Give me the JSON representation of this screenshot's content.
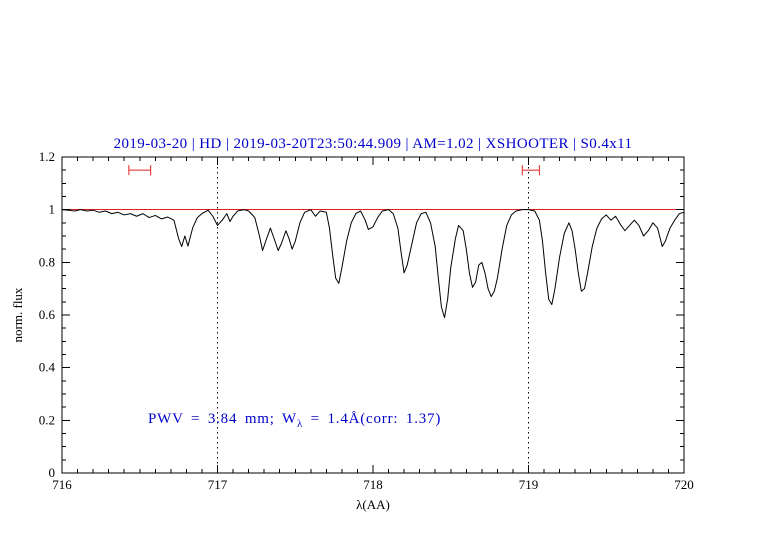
{
  "chart_data": {
    "type": "line",
    "title": "2019-03-20 | HD | 2019-03-20T23:50:44.909 | AM=1.02 | XSHOOTER | S0.4x11",
    "title_color": "#0000cc",
    "xlabel": "λ(AA)",
    "ylabel": "norm. flux",
    "xlim": [
      716,
      720
    ],
    "ylim": [
      0,
      1.2
    ],
    "x_ticks": [
      716,
      717,
      718,
      719,
      720
    ],
    "x_tick_labels": [
      "716",
      "717",
      "718",
      "719",
      "720"
    ],
    "x_minor_step": 0.1,
    "y_ticks": [
      0,
      0.2,
      0.4,
      0.6,
      0.8,
      1,
      1.2
    ],
    "y_tick_labels": [
      "0",
      "0.2",
      "0.4",
      "0.6",
      "0.8",
      "1",
      "1.2"
    ],
    "y_minor_step": 0.05,
    "vertical_dotted_lines_x": [
      717,
      719
    ],
    "reference_line": {
      "y": 1,
      "color": "#e02020"
    },
    "range_markers": [
      {
        "x1": 716.43,
        "x2": 716.57,
        "y": 1.15,
        "color": "#e02020"
      },
      {
        "x1": 718.96,
        "x2": 719.07,
        "y": 1.15,
        "color": "#e02020"
      }
    ],
    "annotation": {
      "prefix": "PWV = 3.84 mm; W",
      "sub": "λ",
      "suffix": " = 1.4Å(corr: 1.37)",
      "color": "#0000cc"
    },
    "series": [
      {
        "name": "spectrum",
        "color": "#000000",
        "points": [
          [
            716.0,
            1.0
          ],
          [
            716.04,
            0.998
          ],
          [
            716.08,
            0.995
          ],
          [
            716.12,
            1.0
          ],
          [
            716.16,
            0.995
          ],
          [
            716.2,
            0.998
          ],
          [
            716.24,
            0.99
          ],
          [
            716.28,
            0.995
          ],
          [
            716.32,
            0.985
          ],
          [
            716.36,
            0.99
          ],
          [
            716.4,
            0.98
          ],
          [
            716.44,
            0.985
          ],
          [
            716.48,
            0.975
          ],
          [
            716.52,
            0.985
          ],
          [
            716.56,
            0.97
          ],
          [
            716.6,
            0.978
          ],
          [
            716.64,
            0.965
          ],
          [
            716.68,
            0.972
          ],
          [
            716.72,
            0.96
          ],
          [
            716.75,
            0.89
          ],
          [
            716.77,
            0.86
          ],
          [
            716.79,
            0.9
          ],
          [
            716.81,
            0.862
          ],
          [
            716.84,
            0.93
          ],
          [
            716.87,
            0.97
          ],
          [
            716.9,
            0.985
          ],
          [
            716.94,
            0.998
          ],
          [
            716.97,
            0.975
          ],
          [
            717.0,
            0.94
          ],
          [
            717.03,
            0.96
          ],
          [
            717.06,
            0.985
          ],
          [
            717.08,
            0.955
          ],
          [
            717.1,
            0.975
          ],
          [
            717.13,
            0.995
          ],
          [
            717.17,
            1.0
          ],
          [
            717.2,
            0.995
          ],
          [
            717.24,
            0.97
          ],
          [
            717.27,
            0.9
          ],
          [
            717.29,
            0.845
          ],
          [
            717.31,
            0.88
          ],
          [
            717.34,
            0.93
          ],
          [
            717.37,
            0.88
          ],
          [
            717.39,
            0.845
          ],
          [
            717.41,
            0.87
          ],
          [
            717.44,
            0.92
          ],
          [
            717.46,
            0.89
          ],
          [
            717.48,
            0.85
          ],
          [
            717.5,
            0.88
          ],
          [
            717.53,
            0.95
          ],
          [
            717.56,
            0.99
          ],
          [
            717.6,
            1.0
          ],
          [
            717.63,
            0.975
          ],
          [
            717.66,
            0.995
          ],
          [
            717.7,
            0.99
          ],
          [
            717.72,
            0.93
          ],
          [
            717.74,
            0.83
          ],
          [
            717.76,
            0.74
          ],
          [
            717.78,
            0.72
          ],
          [
            717.8,
            0.78
          ],
          [
            717.83,
            0.88
          ],
          [
            717.86,
            0.95
          ],
          [
            717.89,
            0.985
          ],
          [
            717.92,
            0.995
          ],
          [
            717.95,
            0.96
          ],
          [
            717.97,
            0.925
          ],
          [
            718.0,
            0.935
          ],
          [
            718.03,
            0.97
          ],
          [
            718.06,
            0.995
          ],
          [
            718.1,
            1.0
          ],
          [
            718.13,
            0.985
          ],
          [
            718.16,
            0.93
          ],
          [
            718.18,
            0.84
          ],
          [
            718.2,
            0.76
          ],
          [
            718.22,
            0.79
          ],
          [
            718.25,
            0.87
          ],
          [
            718.28,
            0.95
          ],
          [
            718.31,
            0.985
          ],
          [
            718.34,
            0.99
          ],
          [
            718.37,
            0.95
          ],
          [
            718.4,
            0.86
          ],
          [
            718.42,
            0.74
          ],
          [
            718.44,
            0.63
          ],
          [
            718.46,
            0.59
          ],
          [
            718.48,
            0.66
          ],
          [
            718.5,
            0.78
          ],
          [
            718.53,
            0.89
          ],
          [
            718.55,
            0.94
          ],
          [
            718.58,
            0.92
          ],
          [
            718.6,
            0.85
          ],
          [
            718.62,
            0.76
          ],
          [
            718.64,
            0.705
          ],
          [
            718.66,
            0.725
          ],
          [
            718.68,
            0.79
          ],
          [
            718.7,
            0.8
          ],
          [
            718.72,
            0.76
          ],
          [
            718.74,
            0.7
          ],
          [
            718.76,
            0.67
          ],
          [
            718.78,
            0.69
          ],
          [
            718.8,
            0.74
          ],
          [
            718.83,
            0.85
          ],
          [
            718.86,
            0.94
          ],
          [
            718.89,
            0.98
          ],
          [
            718.92,
            0.995
          ],
          [
            718.96,
            1.0
          ],
          [
            719.0,
            1.0
          ],
          [
            719.04,
            0.995
          ],
          [
            719.07,
            0.96
          ],
          [
            719.09,
            0.88
          ],
          [
            719.11,
            0.76
          ],
          [
            719.13,
            0.66
          ],
          [
            719.15,
            0.64
          ],
          [
            719.17,
            0.7
          ],
          [
            719.2,
            0.82
          ],
          [
            719.23,
            0.91
          ],
          [
            719.26,
            0.95
          ],
          [
            719.28,
            0.92
          ],
          [
            719.3,
            0.85
          ],
          [
            719.32,
            0.76
          ],
          [
            719.34,
            0.69
          ],
          [
            719.36,
            0.7
          ],
          [
            719.38,
            0.76
          ],
          [
            719.41,
            0.86
          ],
          [
            719.44,
            0.93
          ],
          [
            719.47,
            0.965
          ],
          [
            719.5,
            0.98
          ],
          [
            719.53,
            0.96
          ],
          [
            719.56,
            0.975
          ],
          [
            719.59,
            0.945
          ],
          [
            719.62,
            0.92
          ],
          [
            719.65,
            0.94
          ],
          [
            719.68,
            0.96
          ],
          [
            719.71,
            0.94
          ],
          [
            719.74,
            0.9
          ],
          [
            719.77,
            0.92
          ],
          [
            719.8,
            0.95
          ],
          [
            719.83,
            0.93
          ],
          [
            719.86,
            0.86
          ],
          [
            719.88,
            0.88
          ],
          [
            719.91,
            0.93
          ],
          [
            719.94,
            0.96
          ],
          [
            719.97,
            0.985
          ],
          [
            720.0,
            0.99
          ]
        ]
      }
    ]
  }
}
